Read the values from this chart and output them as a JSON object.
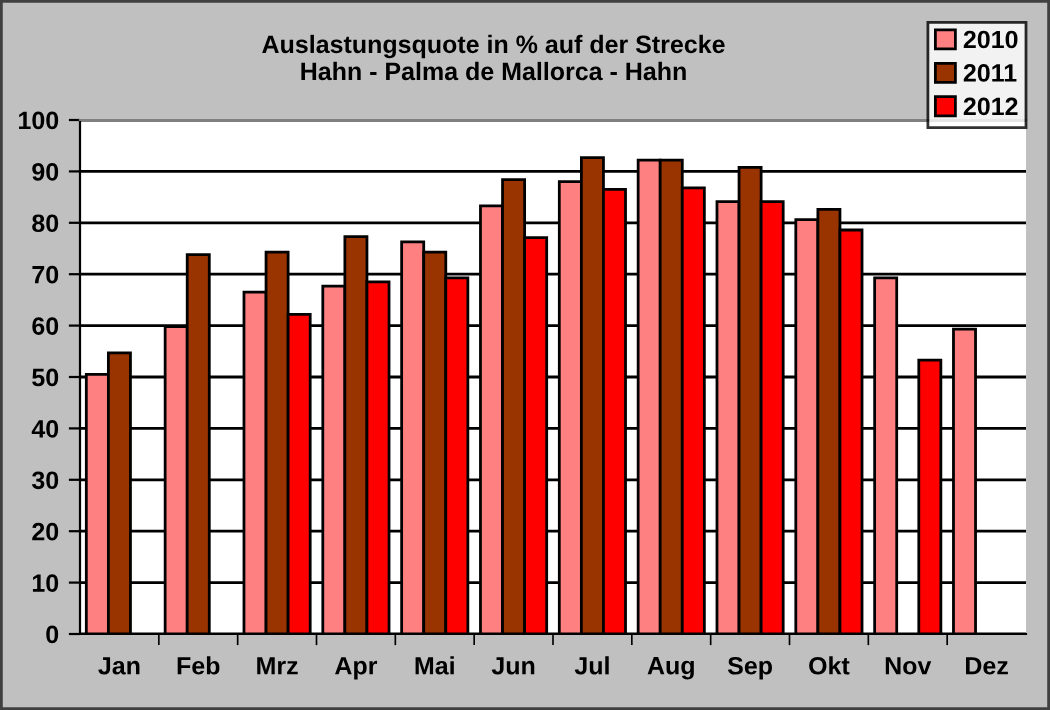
{
  "chart_data": {
    "type": "bar",
    "title": "Auslastungsquote in % auf der Strecke\nHahn - Palma de Mallorca - Hahn",
    "categories": [
      "Jan",
      "Feb",
      "Mrz",
      "Apr",
      "Mai",
      "Jun",
      "Jul",
      "Aug",
      "Sep",
      "Okt",
      "Nov",
      "Dez"
    ],
    "series": [
      {
        "name": "2010",
        "color": "#ff8080",
        "values": [
          50.5,
          59.8,
          66.5,
          67.7,
          76.3,
          83.3,
          88.0,
          92.2,
          84.1,
          80.6,
          69.3,
          59.3
        ]
      },
      {
        "name": "2011",
        "color": "#993300",
        "values": [
          54.7,
          73.8,
          74.3,
          77.3,
          74.3,
          88.4,
          92.7,
          92.2,
          90.8,
          82.6,
          null,
          null
        ]
      },
      {
        "name": "2012",
        "color": "#ff0000",
        "values": [
          null,
          null,
          62.2,
          68.5,
          69.3,
          77.1,
          86.5,
          86.8,
          84.1,
          78.6,
          53.3,
          null
        ]
      }
    ],
    "ylim": [
      0,
      100
    ],
    "yticks": [
      0,
      10,
      20,
      30,
      40,
      50,
      60,
      70,
      80,
      90,
      100
    ],
    "grid": "y",
    "legend": "top right"
  }
}
